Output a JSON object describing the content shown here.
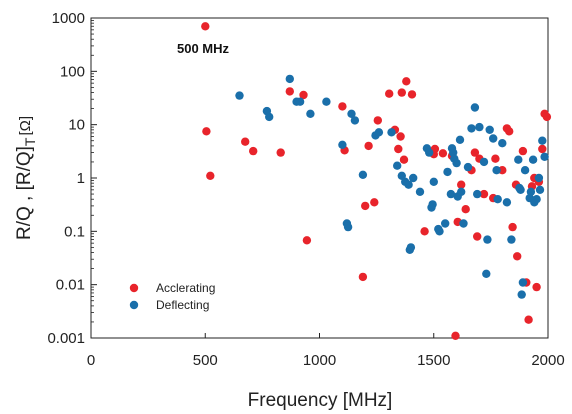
{
  "chart_data": {
    "type": "scatter",
    "title": "",
    "xlabel": "Frequency [MHz]",
    "ylabel_parts": {
      "main": "R/Q , [R/Q]",
      "sub": "T",
      "unit": "[Ω]"
    },
    "xlim": [
      0,
      2000
    ],
    "ylim": [
      0.001,
      1000
    ],
    "yscale": "log",
    "x_ticks": [
      0,
      500,
      1000,
      1500,
      2000
    ],
    "y_ticks": [
      0.001,
      0.01,
      0.1,
      1,
      10,
      100,
      1000
    ],
    "x_tick_labels": [
      "0",
      "500",
      "1000",
      "1500",
      "2000"
    ],
    "y_tick_labels": [
      "0.001",
      "0.01",
      "0.1",
      "1",
      "10",
      "100",
      "1000"
    ],
    "annotation": "500 MHz",
    "grid": false,
    "legend_position": "bottom-left",
    "series": [
      {
        "name": "Acclerating",
        "color": "#e8242b",
        "points": [
          [
            500,
            700
          ],
          [
            505,
            7.5
          ],
          [
            522,
            1.1
          ],
          [
            675,
            4.8
          ],
          [
            710,
            3.2
          ],
          [
            830,
            3.0
          ],
          [
            870,
            42
          ],
          [
            930,
            36
          ],
          [
            945,
            0.068
          ],
          [
            1100,
            22
          ],
          [
            1110,
            3.3
          ],
          [
            1190,
            0.014
          ],
          [
            1200,
            0.3
          ],
          [
            1215,
            4.0
          ],
          [
            1240,
            0.35
          ],
          [
            1255,
            12
          ],
          [
            1305,
            38
          ],
          [
            1330,
            8.0
          ],
          [
            1345,
            3.5
          ],
          [
            1355,
            6.0
          ],
          [
            1360,
            40
          ],
          [
            1370,
            2.2
          ],
          [
            1380,
            65
          ],
          [
            1405,
            37
          ],
          [
            1460,
            0.1
          ],
          [
            1490,
            3.0
          ],
          [
            1500,
            2.8
          ],
          [
            1505,
            3.5
          ],
          [
            1540,
            2.9
          ],
          [
            1580,
            2.6
          ],
          [
            1595,
            0.0011
          ],
          [
            1605,
            0.15
          ],
          [
            1620,
            0.75
          ],
          [
            1640,
            0.26
          ],
          [
            1665,
            1.4
          ],
          [
            1680,
            3.0
          ],
          [
            1690,
            0.08
          ],
          [
            1700,
            2.3
          ],
          [
            1720,
            0.5
          ],
          [
            1760,
            0.42
          ],
          [
            1770,
            2.3
          ],
          [
            1800,
            1.4
          ],
          [
            1820,
            8.5
          ],
          [
            1830,
            7.5
          ],
          [
            1845,
            0.12
          ],
          [
            1860,
            0.75
          ],
          [
            1865,
            0.034
          ],
          [
            1890,
            3.2
          ],
          [
            1905,
            0.011
          ],
          [
            1915,
            0.0022
          ],
          [
            1930,
            0.7
          ],
          [
            1940,
            1.0
          ],
          [
            1950,
            0.009
          ],
          [
            1960,
            0.85
          ],
          [
            1975,
            3.5
          ],
          [
            1985,
            16
          ],
          [
            1995,
            14
          ]
        ]
      },
      {
        "name": "Deflecting",
        "color": "#1a6faa",
        "points": [
          [
            650,
            35
          ],
          [
            770,
            18
          ],
          [
            780,
            14
          ],
          [
            870,
            72
          ],
          [
            900,
            27
          ],
          [
            915,
            27
          ],
          [
            960,
            16
          ],
          [
            1030,
            27
          ],
          [
            1100,
            4.2
          ],
          [
            1120,
            0.14
          ],
          [
            1125,
            0.12
          ],
          [
            1140,
            16
          ],
          [
            1155,
            12
          ],
          [
            1190,
            1.15
          ],
          [
            1245,
            6.3
          ],
          [
            1260,
            7.2
          ],
          [
            1315,
            7.2
          ],
          [
            1340,
            1.7
          ],
          [
            1360,
            1.1
          ],
          [
            1375,
            0.85
          ],
          [
            1390,
            0.75
          ],
          [
            1395,
            0.045
          ],
          [
            1400,
            0.05
          ],
          [
            1410,
            1.0
          ],
          [
            1440,
            0.55
          ],
          [
            1470,
            3.6
          ],
          [
            1480,
            3.0
          ],
          [
            1490,
            0.28
          ],
          [
            1495,
            0.32
          ],
          [
            1500,
            0.85
          ],
          [
            1520,
            0.11
          ],
          [
            1525,
            0.1
          ],
          [
            1550,
            0.14
          ],
          [
            1560,
            1.3
          ],
          [
            1575,
            0.5
          ],
          [
            1580,
            3.6
          ],
          [
            1585,
            3.0
          ],
          [
            1590,
            2.3
          ],
          [
            1600,
            1.9
          ],
          [
            1605,
            0.45
          ],
          [
            1615,
            5.2
          ],
          [
            1620,
            0.55
          ],
          [
            1630,
            0.14
          ],
          [
            1650,
            1.6
          ],
          [
            1665,
            8.5
          ],
          [
            1680,
            21
          ],
          [
            1690,
            0.5
          ],
          [
            1700,
            9.0
          ],
          [
            1720,
            2.0
          ],
          [
            1730,
            0.016
          ],
          [
            1735,
            0.07
          ],
          [
            1745,
            8.0
          ],
          [
            1760,
            5.5
          ],
          [
            1775,
            1.4
          ],
          [
            1780,
            0.4
          ],
          [
            1800,
            4.5
          ],
          [
            1820,
            0.35
          ],
          [
            1840,
            0.07
          ],
          [
            1870,
            2.2
          ],
          [
            1875,
            0.65
          ],
          [
            1880,
            0.6
          ],
          [
            1885,
            0.0065
          ],
          [
            1890,
            0.011
          ],
          [
            1900,
            1.4
          ],
          [
            1920,
            0.42
          ],
          [
            1925,
            0.55
          ],
          [
            1935,
            2.2
          ],
          [
            1940,
            0.35
          ],
          [
            1950,
            0.4
          ],
          [
            1960,
            1.0
          ],
          [
            1965,
            0.6
          ],
          [
            1975,
            5.0
          ],
          [
            1985,
            2.5
          ]
        ]
      }
    ]
  }
}
